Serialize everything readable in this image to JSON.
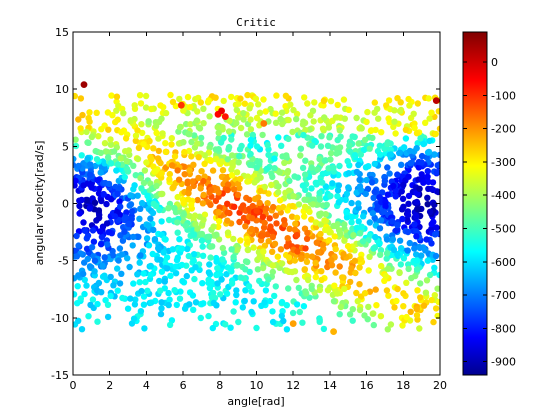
{
  "chart_data": {
    "type": "scatter",
    "title": "Critic",
    "xlabel": "angle[rad]",
    "ylabel": "angular velocity[rad/s]",
    "xlim": [
      0,
      20
    ],
    "ylim": [
      -15,
      15
    ],
    "x_ticks": [
      "0",
      "2",
      "4",
      "6",
      "8",
      "10",
      "12",
      "14",
      "16",
      "18",
      "20"
    ],
    "y_ticks": [
      "15",
      "10",
      "5",
      "0",
      "-5",
      "-10",
      "-15"
    ],
    "grid": false,
    "colormap": "jet",
    "colorbar": {
      "range": [
        -940,
        90
      ],
      "ticks": [
        "0",
        "-100",
        "-200",
        "-300",
        "-400",
        "-500",
        "-600",
        "-700",
        "-800",
        "-900"
      ]
    },
    "highlight_points": [
      {
        "x": 0.6,
        "y": 10.4,
        "value": 60
      },
      {
        "x": 5.9,
        "y": 8.6,
        "value": -90
      },
      {
        "x": 7.9,
        "y": 7.8,
        "value": -40
      },
      {
        "x": 8.3,
        "y": 7.6,
        "value": -60
      },
      {
        "x": 8.1,
        "y": 8.1,
        "value": -20
      },
      {
        "x": 19.8,
        "y": 9.0,
        "value": 30
      },
      {
        "x": 10.4,
        "y": 7.0,
        "value": -160
      },
      {
        "x": 14.2,
        "y": -11.2,
        "value": -220
      },
      {
        "x": 12.0,
        "y": -10.5,
        "value": -200
      }
    ],
    "description_fields": {
      "band": "High-value (yellow/orange) diagonal band from about (2, 6) to (16, -7); low values (dark blue) near x≈0-3 and x≈17-20 around y≈0"
    }
  }
}
